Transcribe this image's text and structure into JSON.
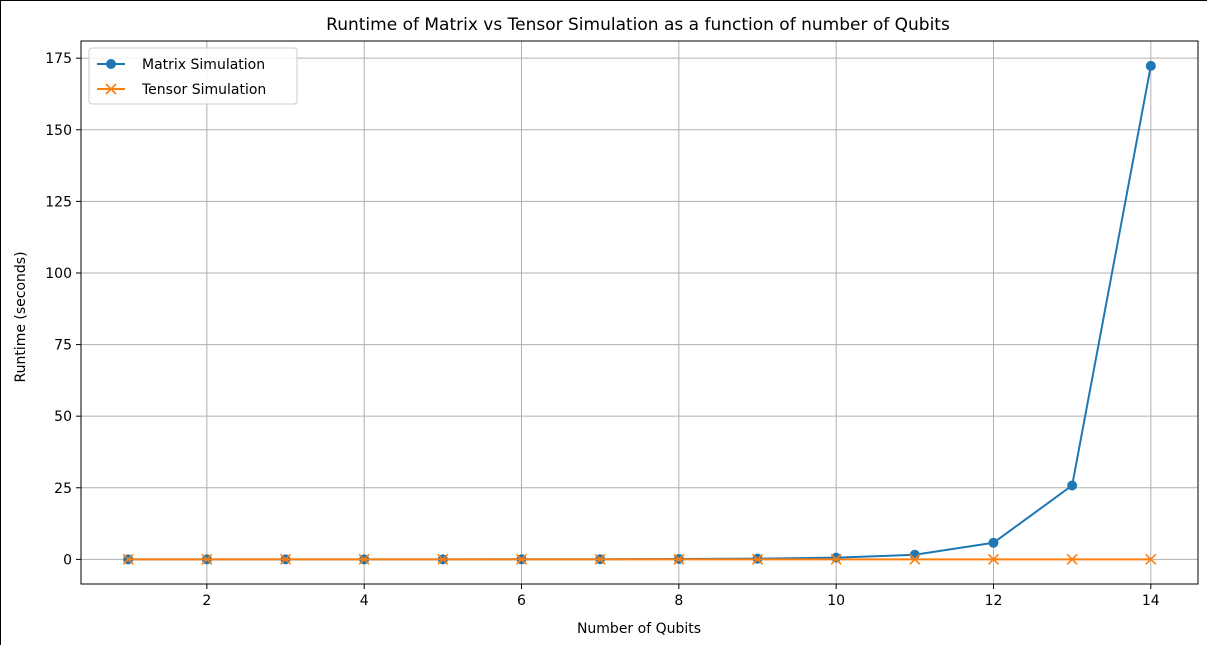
{
  "chart_data": {
    "type": "line",
    "title": "Runtime of Matrix vs Tensor Simulation as a function of number of Qubits",
    "xlabel": "Number of Qubits",
    "ylabel": "Runtime (seconds)",
    "x": [
      1,
      2,
      3,
      4,
      5,
      6,
      7,
      8,
      9,
      10,
      11,
      12,
      13,
      14
    ],
    "xlim": [
      0.4,
      14.6
    ],
    "ylim": [
      -8.6,
      181
    ],
    "xticks": [
      2,
      4,
      6,
      8,
      10,
      12,
      14
    ],
    "yticks": [
      0,
      25,
      50,
      75,
      100,
      125,
      150,
      175
    ],
    "grid": true,
    "legend_position": "top-left",
    "series": [
      {
        "name": "Matrix Simulation",
        "color": "#1f77b4",
        "marker": "circle",
        "values": [
          0.001,
          0.002,
          0.004,
          0.008,
          0.015,
          0.03,
          0.06,
          0.12,
          0.25,
          0.6,
          1.6,
          5.8,
          25.8,
          172.3
        ]
      },
      {
        "name": "Tensor Simulation",
        "color": "#ff7f0e",
        "marker": "x",
        "values": [
          0.001,
          0.001,
          0.002,
          0.002,
          0.003,
          0.003,
          0.004,
          0.005,
          0.006,
          0.007,
          0.008,
          0.01,
          0.012,
          0.015
        ]
      }
    ]
  }
}
